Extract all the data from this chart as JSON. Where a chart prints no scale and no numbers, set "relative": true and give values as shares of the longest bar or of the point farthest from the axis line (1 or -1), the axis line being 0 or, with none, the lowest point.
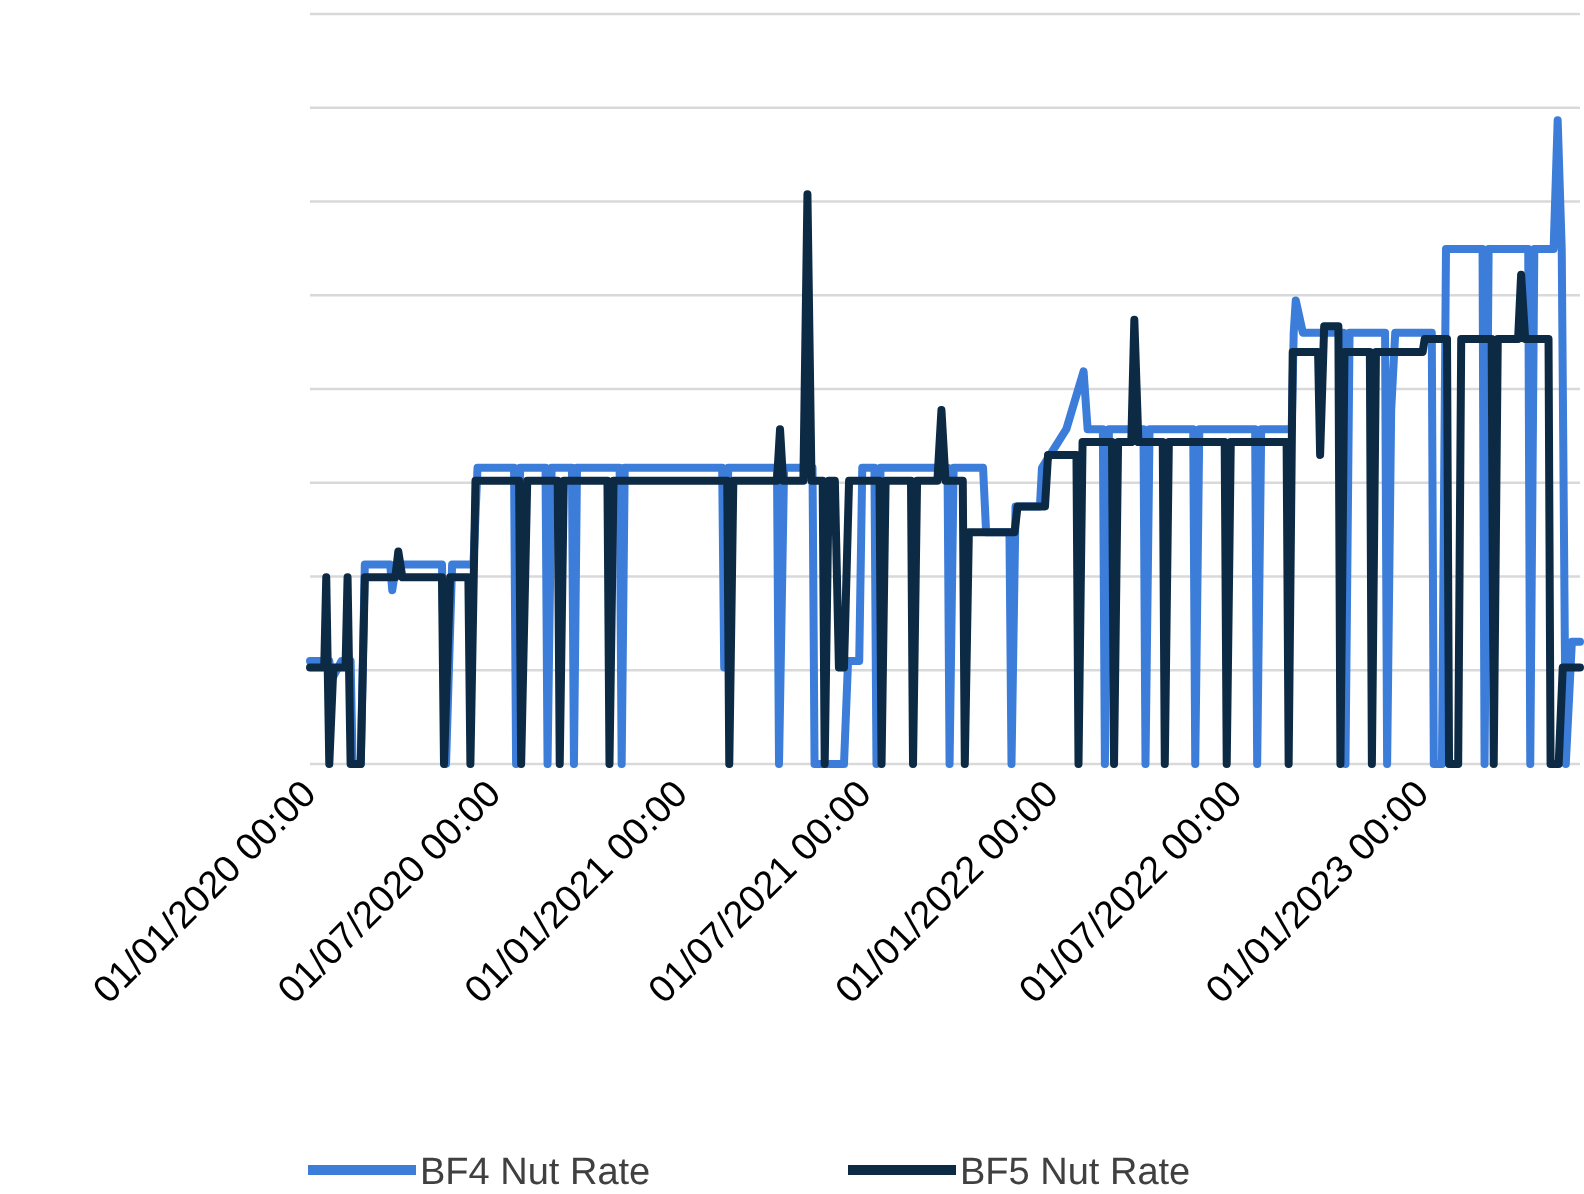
{
  "chart_data": {
    "type": "line",
    "relative": true,
    "grid": "y",
    "legend": "bottom",
    "tick_labels": "x",
    "line_style": "solid",
    "xlim": [
      "2020-01-01",
      "2023-06-05"
    ],
    "xticks": [
      {
        "value": "2020-01-01",
        "label": "01/01/2020 00:00"
      },
      {
        "value": "2020-07-01",
        "label": "01/07/2020 00:00"
      },
      {
        "value": "2021-01-01",
        "label": "01/01/2021 00:00"
      },
      {
        "value": "2021-07-01",
        "label": "01/07/2021 00:00"
      },
      {
        "value": "2022-01-01",
        "label": "01/01/2022 00:00"
      },
      {
        "value": "2022-07-01",
        "label": "01/07/2022 00:00"
      },
      {
        "value": "2023-01-01",
        "label": "01/01/2023 00:00"
      }
    ],
    "series": [
      {
        "name": "BF4 Nut Rate",
        "color": "#3c7dd9",
        "x": [
          "2020-01-01",
          "2020-01-20",
          "2020-01-22",
          "2020-02-01",
          "2020-02-10",
          "2020-02-12",
          "2020-02-20",
          "2020-02-24",
          "2020-03-20",
          "2020-03-22",
          "2020-03-26",
          "2020-05-10",
          "2020-05-14",
          "2020-05-20",
          "2020-06-10",
          "2020-06-14",
          "2020-07-20",
          "2020-07-22",
          "2020-07-26",
          "2020-08-20",
          "2020-08-22",
          "2020-08-26",
          "2020-09-15",
          "2020-09-17",
          "2020-09-20",
          "2020-11-01",
          "2020-11-03",
          "2020-11-06",
          "2021-02-10",
          "2021-02-12",
          "2021-02-16",
          "2021-04-05",
          "2021-04-07",
          "2021-04-12",
          "2021-05-10",
          "2021-05-12",
          "2021-06-10",
          "2021-06-14",
          "2021-06-25",
          "2021-06-28",
          "2021-07-10",
          "2021-07-12",
          "2021-07-16",
          "2021-09-20",
          "2021-09-22",
          "2021-09-26",
          "2021-10-25",
          "2021-10-28",
          "2021-11-20",
          "2021-11-22",
          "2021-11-26",
          "2021-12-20",
          "2021-12-22",
          "2022-01-15",
          "2022-02-01",
          "2022-02-05",
          "2022-02-20",
          "2022-02-22",
          "2022-02-26",
          "2022-04-01",
          "2022-04-03",
          "2022-04-07",
          "2022-05-20",
          "2022-05-22",
          "2022-05-26",
          "2022-07-20",
          "2022-07-22",
          "2022-07-26",
          "2022-08-25",
          "2022-08-27",
          "2022-08-29",
          "2022-09-05",
          "2022-10-15",
          "2022-10-17",
          "2022-10-21",
          "2022-11-25",
          "2022-11-27",
          "2022-12-01",
          "2022-12-05",
          "2023-01-10",
          "2023-01-12",
          "2023-01-20",
          "2023-01-24",
          "2023-03-01",
          "2023-03-03",
          "2023-03-07",
          "2023-04-15",
          "2023-04-17",
          "2023-04-21",
          "2023-05-10",
          "2023-05-14",
          "2023-05-18",
          "2023-05-22",
          "2023-05-28",
          "2023-06-05"
        ],
        "values": [
          0.16,
          0.16,
          0.13,
          0.16,
          0.16,
          0,
          0,
          0.31,
          0.31,
          0.27,
          0.31,
          0.31,
          0,
          0.31,
          0.31,
          0.46,
          0.46,
          0,
          0.46,
          0.46,
          0,
          0.46,
          0.46,
          0,
          0.46,
          0.46,
          0,
          0.46,
          0.46,
          0.15,
          0.46,
          0.46,
          0,
          0.46,
          0.46,
          0,
          0,
          0.16,
          0.16,
          0.46,
          0.46,
          0,
          0.46,
          0.46,
          0,
          0.46,
          0.46,
          0.36,
          0.36,
          0,
          0.4,
          0.4,
          0.46,
          0.52,
          0.61,
          0.52,
          0.52,
          0,
          0.52,
          0.52,
          0,
          0.52,
          0.52,
          0,
          0.52,
          0.52,
          0,
          0.52,
          0.52,
          0.67,
          0.72,
          0.67,
          0.67,
          0,
          0.67,
          0.67,
          0,
          0.55,
          0.67,
          0.67,
          0,
          0,
          0.8,
          0.8,
          0,
          0.8,
          0.8,
          0,
          0.8,
          0.8,
          1,
          0.8,
          0,
          0.19,
          0.19
        ]
      },
      {
        "name": "BF5 Nut Rate",
        "color": "#0d2a45",
        "x": [
          "2020-01-01",
          "2020-01-15",
          "2020-01-17",
          "2020-01-20",
          "2020-01-24",
          "2020-02-05",
          "2020-02-07",
          "2020-02-10",
          "2020-02-20",
          "2020-02-24",
          "2020-03-25",
          "2020-03-28",
          "2020-04-01",
          "2020-05-10",
          "2020-05-12",
          "2020-05-18",
          "2020-06-05",
          "2020-06-07",
          "2020-06-12",
          "2020-07-25",
          "2020-07-27",
          "2020-08-02",
          "2020-09-01",
          "2020-09-03",
          "2020-09-07",
          "2020-10-20",
          "2020-10-22",
          "2020-10-26",
          "2021-02-15",
          "2021-02-17",
          "2021-02-21",
          "2021-04-05",
          "2021-04-08",
          "2021-04-11",
          "2021-05-01",
          "2021-05-05",
          "2021-05-09",
          "2021-05-20",
          "2021-05-22",
          "2021-05-26",
          "2021-06-01",
          "2021-06-05",
          "2021-06-10",
          "2021-06-15",
          "2021-07-15",
          "2021-07-17",
          "2021-07-21",
          "2021-08-15",
          "2021-08-17",
          "2021-08-21",
          "2021-09-10",
          "2021-09-14",
          "2021-09-18",
          "2021-10-05",
          "2021-10-07",
          "2021-10-11",
          "2021-11-25",
          "2021-11-28",
          "2021-12-25",
          "2021-12-28",
          "2022-01-25",
          "2022-01-27",
          "2022-01-31",
          "2022-03-01",
          "2022-03-03",
          "2022-03-07",
          "2022-03-20",
          "2022-03-23",
          "2022-03-27",
          "2022-04-20",
          "2022-04-22",
          "2022-04-26",
          "2022-06-20",
          "2022-06-22",
          "2022-06-26",
          "2022-08-20",
          "2022-08-22",
          "2022-08-26",
          "2022-09-20",
          "2022-09-22",
          "2022-09-26",
          "2022-10-10",
          "2022-10-12",
          "2022-10-16",
          "2022-11-10",
          "2022-11-12",
          "2022-11-16",
          "2023-01-01",
          "2023-01-03",
          "2023-01-25",
          "2023-01-27",
          "2023-02-05",
          "2023-02-08",
          "2023-03-10",
          "2023-03-12",
          "2023-03-16",
          "2023-04-05",
          "2023-04-08",
          "2023-04-12",
          "2023-05-05",
          "2023-05-07",
          "2023-05-15",
          "2023-05-19",
          "2023-06-05"
        ],
        "values": [
          0.15,
          0.15,
          0.29,
          0,
          0.15,
          0.15,
          0.29,
          0,
          0,
          0.29,
          0.29,
          0.33,
          0.29,
          0.29,
          0,
          0.29,
          0.29,
          0,
          0.44,
          0.44,
          0,
          0.44,
          0.44,
          0,
          0.44,
          0.44,
          0,
          0.44,
          0.44,
          0,
          0.44,
          0.44,
          0.52,
          0.44,
          0.44,
          0.885,
          0.44,
          0.44,
          0,
          0.44,
          0.44,
          0.15,
          0.15,
          0.44,
          0.44,
          0,
          0.44,
          0.44,
          0,
          0.44,
          0.44,
          0.55,
          0.44,
          0.44,
          0,
          0.36,
          0.36,
          0.4,
          0.4,
          0.48,
          0.48,
          0,
          0.5,
          0.5,
          0,
          0.5,
          0.5,
          0.69,
          0.5,
          0.5,
          0,
          0.5,
          0.5,
          0,
          0.5,
          0.5,
          0,
          0.64,
          0.64,
          0.48,
          0.68,
          0.68,
          0,
          0.64,
          0.64,
          0,
          0.64,
          0.64,
          0.66,
          0.66,
          0,
          0,
          0.66,
          0.66,
          0,
          0.66,
          0.66,
          0.76,
          0.66,
          0.66,
          0,
          0,
          0.15,
          0.15
        ]
      }
    ]
  }
}
